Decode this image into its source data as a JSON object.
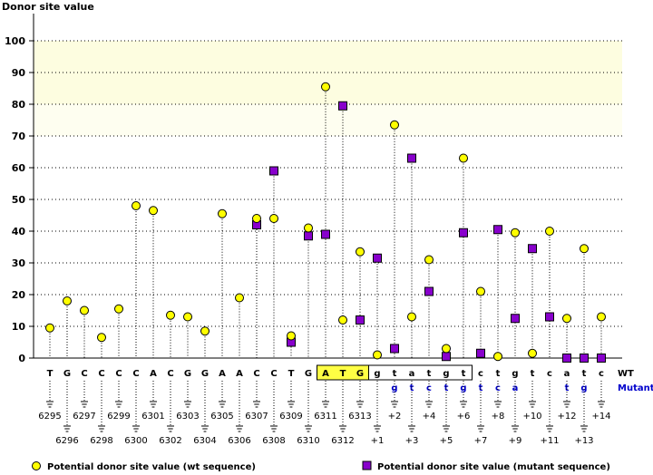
{
  "chart_data": {
    "type": "scatter",
    "title": "",
    "ylabel": "Donor site value",
    "ylim": [
      0,
      100
    ],
    "yticks": [
      0,
      10,
      20,
      30,
      40,
      50,
      60,
      70,
      80,
      90,
      100
    ],
    "highlight_band": [
      70,
      100
    ],
    "positions": [
      "6295",
      "6296",
      "6297",
      "6298",
      "6299",
      "6300",
      "6301",
      "6302",
      "6303",
      "6304",
      "6305",
      "6306",
      "6307",
      "6308",
      "6309",
      "6310",
      "6311",
      "6312",
      "6313",
      "+1",
      "+2",
      "+3",
      "+4",
      "+5",
      "+6",
      "+7",
      "+8",
      "+9",
      "+10",
      "+11",
      "+12",
      "+13",
      "+14"
    ],
    "wt_sequence": [
      "T",
      "G",
      "C",
      "C",
      "C",
      "C",
      "A",
      "C",
      "G",
      "G",
      "A",
      "A",
      "C",
      "C",
      "T",
      "G",
      "A",
      "T",
      "G",
      "g",
      "t",
      "a",
      "t",
      "g",
      "t",
      "c",
      "t",
      "g",
      "t",
      "c",
      "a",
      "t",
      "c"
    ],
    "mutant_sequence": [
      "",
      "",
      "",
      "",
      "",
      "",
      "",
      "",
      "",
      "",
      "",
      "",
      "",
      "",
      "",
      "",
      "",
      "",
      "",
      "",
      "g",
      "t",
      "c",
      "t",
      "g",
      "t",
      "c",
      "a",
      "",
      "",
      "t",
      "g",
      ""
    ],
    "series": [
      {
        "name": "Potential donor site value (wt sequence)",
        "marker": "circle",
        "color": "#ffff00",
        "values": [
          9.5,
          18,
          15,
          6.5,
          15.5,
          48,
          46.5,
          13.5,
          13,
          8.5,
          45.5,
          19,
          44,
          44,
          7,
          41,
          85.5,
          12,
          33.5,
          1,
          73.5,
          13,
          31,
          3,
          63,
          21,
          0.5,
          39.5,
          1.5,
          40,
          12.5,
          34.5,
          13
        ]
      },
      {
        "name": "Potential donor site value (mutant sequence)",
        "marker": "square",
        "color": "#8800cc",
        "values": [
          null,
          null,
          null,
          null,
          null,
          null,
          null,
          null,
          null,
          null,
          null,
          null,
          42,
          59,
          5,
          38.5,
          39,
          79.5,
          12,
          31.5,
          3,
          63,
          21,
          0.5,
          39.5,
          1.5,
          40.5,
          12.5,
          34.5,
          13,
          0,
          0,
          0
        ]
      }
    ],
    "row_labels": {
      "wt": "WT",
      "mutant": "Mutant"
    },
    "legend_position": "bottom"
  }
}
